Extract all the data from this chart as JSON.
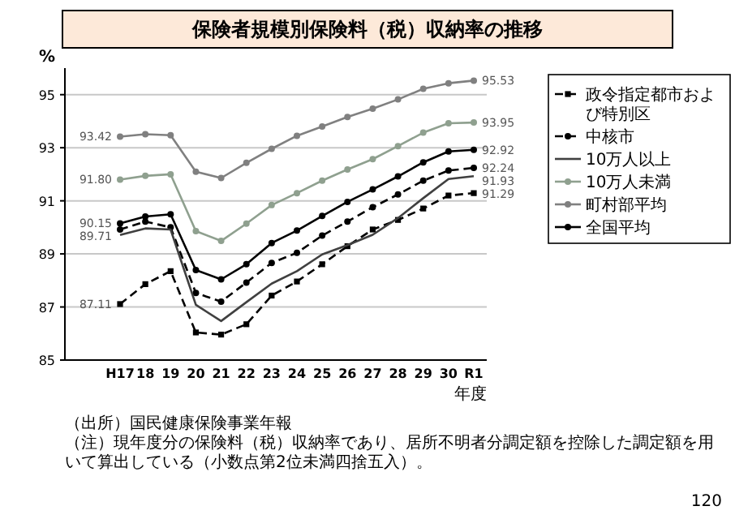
{
  "chart_data": {
    "type": "line",
    "title": "保険者規模別保険料（税）収納率の推移",
    "ylabel": "%",
    "xlabel": "年度",
    "categories": [
      "H17",
      "18",
      "19",
      "20",
      "21",
      "22",
      "23",
      "24",
      "25",
      "26",
      "27",
      "28",
      "29",
      "30",
      "R1"
    ],
    "ylim": [
      85,
      96
    ],
    "yticks": [
      85,
      87,
      89,
      91,
      93,
      95
    ],
    "grid": "y",
    "legend": "right",
    "annotations": [
      "（出所）国民健康保険事業年報",
      "（注）現年度分の保険料（税）収納率であり、居所不明者分調定額を控除した調定額を用いて算出している（小数点第2位未満四捨五入）。",
      "120"
    ],
    "series": [
      {
        "name": "政令指定都市および特別区",
        "color": "#000000",
        "marker": "square",
        "line_style": "dashed",
        "values": [
          87.11,
          87.86,
          88.35,
          86.04,
          85.96,
          86.35,
          87.43,
          87.96,
          88.61,
          89.29,
          89.92,
          90.28,
          90.71,
          91.2,
          91.29
        ],
        "value_labels": [
          "87.11",
          null,
          null,
          null,
          null,
          null,
          null,
          null,
          null,
          null,
          null,
          null,
          null,
          null,
          "91.29"
        ]
      },
      {
        "name": "中核市",
        "color": "#000000",
        "marker": "circle",
        "line_style": "dashed",
        "values": [
          89.92,
          90.22,
          90.0,
          87.53,
          87.2,
          87.92,
          88.66,
          89.04,
          89.69,
          90.22,
          90.76,
          91.24,
          91.76,
          92.14,
          92.24
        ],
        "value_labels": [
          null,
          null,
          null,
          null,
          null,
          null,
          null,
          null,
          null,
          null,
          null,
          null,
          null,
          null,
          "92.24"
        ]
      },
      {
        "name": "10万人以上",
        "color": "#404040",
        "marker": "none",
        "line_style": "solid",
        "values": [
          89.71,
          89.96,
          89.92,
          87.08,
          86.47,
          87.18,
          87.88,
          88.35,
          88.98,
          89.33,
          89.72,
          90.35,
          91.1,
          91.82,
          91.93
        ],
        "value_labels": [
          "89.71",
          null,
          null,
          null,
          null,
          null,
          null,
          null,
          null,
          null,
          null,
          null,
          null,
          null,
          "91.93"
        ]
      },
      {
        "name": "10万人未満",
        "color": "#8fa08f",
        "marker": "circle",
        "line_style": "solid",
        "values": [
          91.8,
          91.94,
          92.0,
          89.86,
          89.49,
          90.14,
          90.84,
          91.29,
          91.76,
          92.18,
          92.57,
          93.06,
          93.57,
          93.92,
          93.95
        ],
        "value_labels": [
          "91.80",
          null,
          null,
          null,
          null,
          null,
          null,
          null,
          null,
          null,
          null,
          null,
          null,
          null,
          "93.95"
        ]
      },
      {
        "name": "町村部平均",
        "color": "#808080",
        "marker": "circle",
        "line_style": "solid",
        "values": [
          93.42,
          93.51,
          93.47,
          92.1,
          91.86,
          92.43,
          92.96,
          93.45,
          93.8,
          94.16,
          94.47,
          94.82,
          95.22,
          95.43,
          95.53
        ],
        "value_labels": [
          "93.42",
          null,
          null,
          null,
          null,
          null,
          null,
          null,
          null,
          null,
          null,
          null,
          null,
          null,
          "95.53"
        ]
      },
      {
        "name": "全国平均",
        "color": "#000000",
        "marker": "circle",
        "line_style": "solid",
        "values": [
          90.15,
          90.41,
          90.49,
          88.39,
          88.04,
          88.61,
          89.41,
          89.88,
          90.43,
          90.96,
          91.43,
          91.92,
          92.45,
          92.86,
          92.92
        ],
        "value_labels": [
          "90.15",
          null,
          null,
          null,
          null,
          null,
          null,
          null,
          null,
          null,
          null,
          null,
          null,
          null,
          "92.92"
        ]
      }
    ]
  }
}
